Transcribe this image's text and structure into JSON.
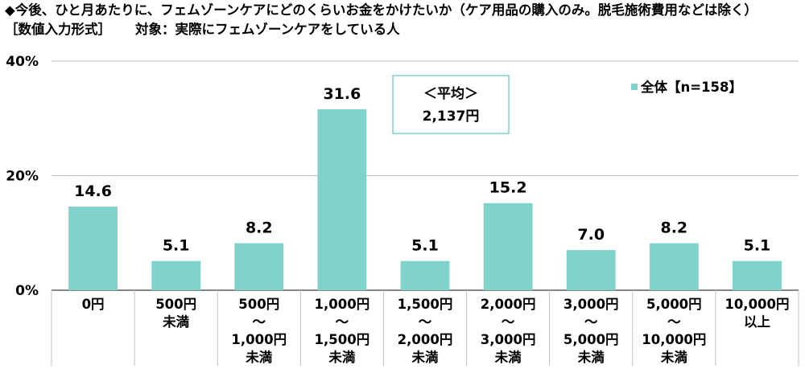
{
  "header": {
    "title": "◆今後、ひと月あたりに、フェムゾーンケアにどのくらいお金をかけたいか（ケア用品の購入のみ。脱毛施術費用などは除く）",
    "format": "［数値入力形式］",
    "target": "対象：実際にフェムゾーンケアをしている人"
  },
  "annotation": {
    "label": "＜平均＞",
    "value": "2,137円"
  },
  "colors": {
    "bar": "#7fd3ca",
    "annotation_border": "#7fd3ca",
    "grid": "#bfbfbf",
    "axis": "#404040"
  },
  "chart_data": {
    "type": "bar",
    "categories": [
      [
        "0円"
      ],
      [
        "500円",
        "未満"
      ],
      [
        "500円",
        "～",
        "1,000円",
        "未満"
      ],
      [
        "1,000円",
        "～",
        "1,500円",
        "未満"
      ],
      [
        "1,500円",
        "～",
        "2,000円",
        "未満"
      ],
      [
        "2,000円",
        "～",
        "3,000円",
        "未満"
      ],
      [
        "3,000円",
        "～",
        "5,000円",
        "未満"
      ],
      [
        "5,000円",
        "～",
        "10,000円",
        "未満"
      ],
      [
        "10,000円",
        "以上"
      ]
    ],
    "series": [
      {
        "name": "全体【n=158】",
        "values": [
          14.6,
          5.1,
          8.2,
          31.6,
          5.1,
          15.2,
          7.0,
          8.2,
          5.1
        ]
      }
    ],
    "value_labels": [
      "14.6",
      "5.1",
      "8.2",
      "31.6",
      "5.1",
      "15.2",
      "7.0",
      "8.2",
      "5.1"
    ],
    "yticks": [
      0,
      20,
      40
    ],
    "ytick_labels": [
      "0%",
      "20%",
      "40%"
    ],
    "ylim": [
      0,
      40
    ],
    "legend_position": "top-right",
    "grid": true
  }
}
